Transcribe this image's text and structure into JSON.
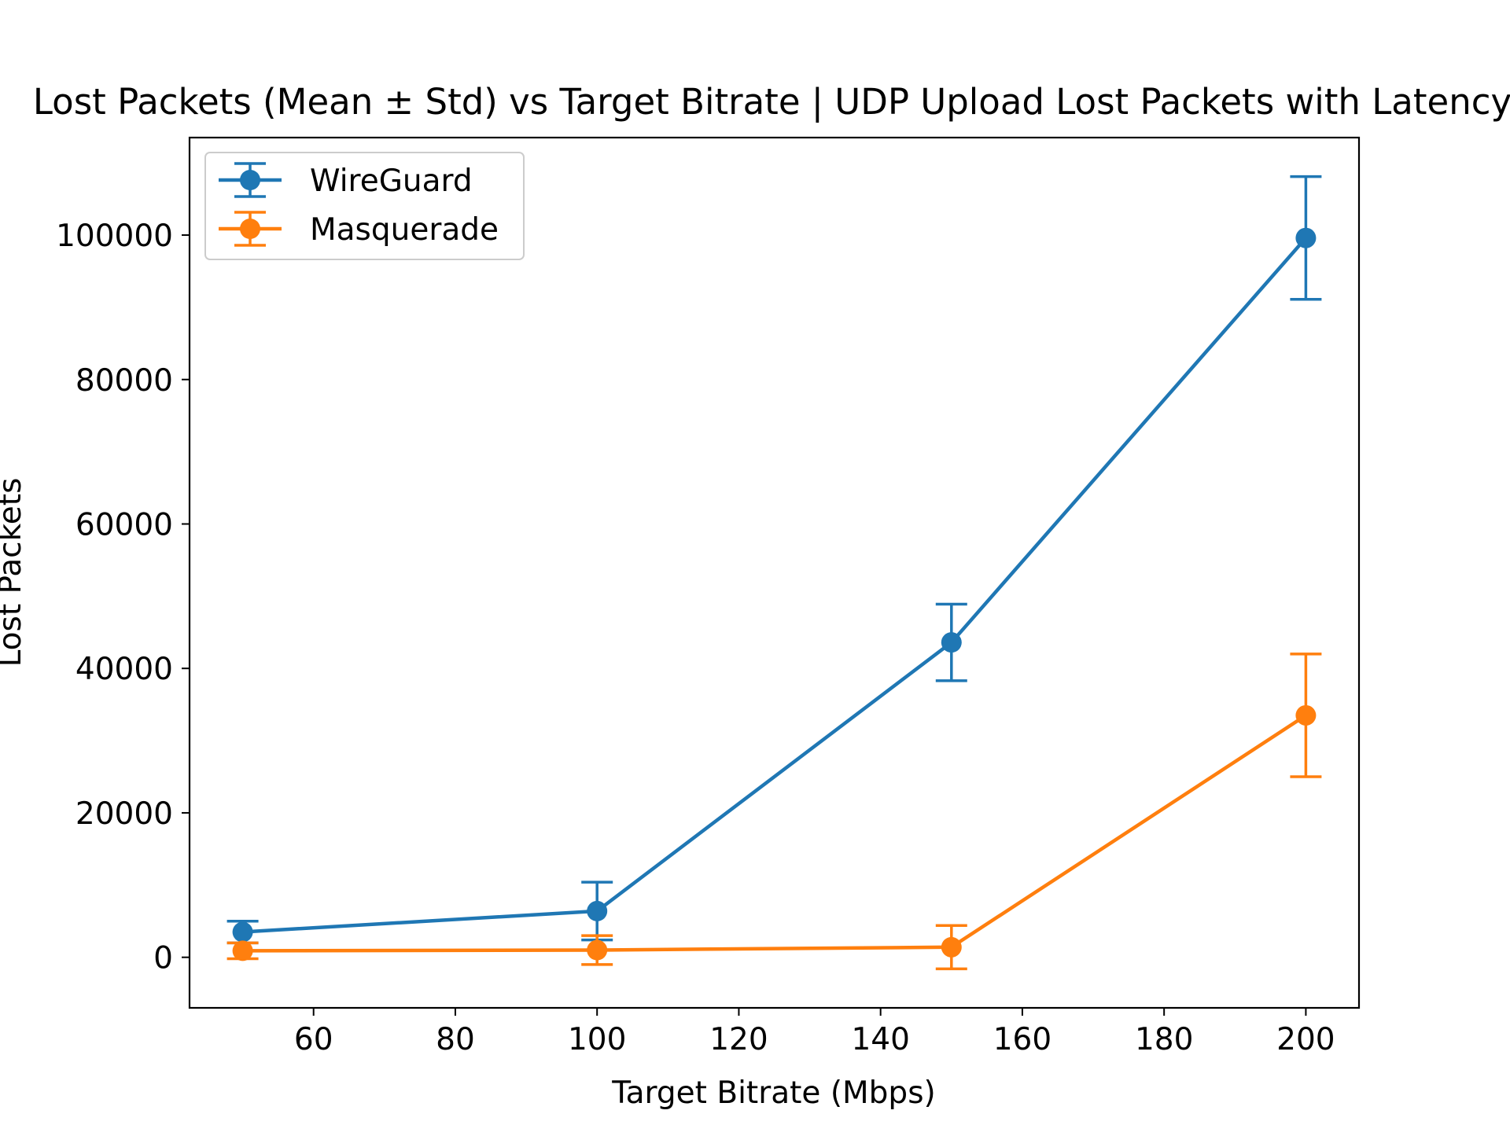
{
  "chart_data": {
    "type": "line",
    "title": "Lost Packets (Mean ± Std) vs Target Bitrate | UDP Upload Lost Packets with Latency",
    "xlabel": "Target Bitrate (Mbps)",
    "ylabel": "Lost Packets",
    "xlim": [
      42.5,
      207.5
    ],
    "ylim": [
      -7000,
      113500
    ],
    "xticks": [
      60,
      80,
      100,
      120,
      140,
      160,
      180,
      200
    ],
    "yticks": [
      0,
      20000,
      40000,
      60000,
      80000,
      100000
    ],
    "x": [
      50,
      100,
      150,
      200
    ],
    "grid": false,
    "legend_position": "upper-left",
    "series": [
      {
        "name": "WireGuard",
        "color": "#1f77b4",
        "values": [
          3500,
          6400,
          43600,
          99600
        ],
        "std": [
          1500,
          4000,
          5300,
          8500
        ]
      },
      {
        "name": "Masquerade",
        "color": "#ff7f0e",
        "values": [
          900,
          1000,
          1400,
          33500
        ],
        "std": [
          1100,
          2000,
          3000,
          8500
        ]
      }
    ]
  }
}
